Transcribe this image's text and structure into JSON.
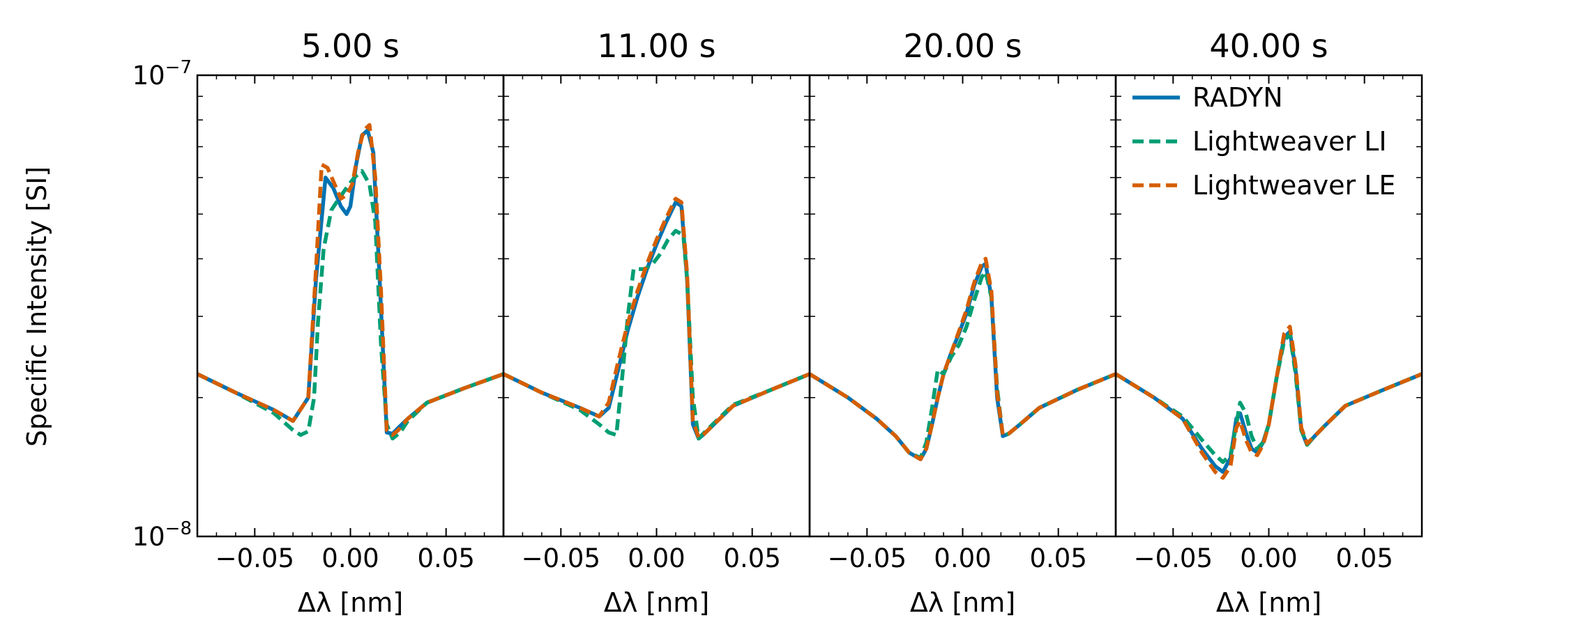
{
  "chart_data": {
    "type": "line",
    "ylabel": "Specific Intensity [SI]",
    "yscale": "log",
    "ylim": [
      1e-08,
      1e-07
    ],
    "ytick_labels": [
      {
        "value": 1e-07,
        "base": "10",
        "exp": "−7"
      },
      {
        "value": 1e-08,
        "base": "10",
        "exp": "−8"
      }
    ],
    "xlabel": "Δλ [nm]",
    "xlim": [
      -0.08,
      0.08
    ],
    "xticks": [
      -0.05,
      0.0,
      0.05
    ],
    "xtick_labels": [
      "−0.05",
      "0.00",
      "0.05"
    ],
    "legend": {
      "placement": "top-right of last panel",
      "entries": [
        {
          "label": "RADYN",
          "color": "#0072b2",
          "dash": "solid"
        },
        {
          "label": "Lightweaver LI",
          "color": "#009e73",
          "dash": "dashed"
        },
        {
          "label": "Lightweaver LE",
          "color": "#d55e00",
          "dash": "dashed"
        }
      ]
    },
    "panels": [
      {
        "title": "5.00 s",
        "series": [
          {
            "name": "RADYN",
            "x": [
              -0.08,
              -0.06,
              -0.04,
              -0.03,
              -0.022,
              -0.018,
              -0.013,
              -0.009,
              -0.005,
              -0.002,
              0.0,
              0.003,
              0.006,
              0.009,
              0.012,
              0.015,
              0.019,
              0.022,
              0.025,
              0.03,
              0.04,
              0.06,
              0.08
            ],
            "y": [
              2.25e-08,
              2.05e-08,
              1.88e-08,
              1.78e-08,
              2e-08,
              3.6e-08,
              6e-08,
              5.7e-08,
              5.2e-08,
              5e-08,
              5.2e-08,
              6.4e-08,
              7.4e-08,
              7.6e-08,
              6.8e-08,
              3.8e-08,
              1.68e-08,
              1.67e-08,
              1.72e-08,
              1.8e-08,
              1.95e-08,
              2.1e-08,
              2.25e-08
            ]
          },
          {
            "name": "Lightweaver LI",
            "x": [
              -0.08,
              -0.06,
              -0.04,
              -0.03,
              -0.026,
              -0.022,
              -0.019,
              -0.017,
              -0.014,
              -0.01,
              -0.006,
              -0.002,
              0.002,
              0.006,
              0.01,
              0.013,
              0.016,
              0.019,
              0.022,
              0.026,
              0.03,
              0.04,
              0.06,
              0.08
            ],
            "y": [
              2.25e-08,
              2.05e-08,
              1.85e-08,
              1.7e-08,
              1.66e-08,
              1.69e-08,
              2e-08,
              2.9e-08,
              4.2e-08,
              5.1e-08,
              5.4e-08,
              5.7e-08,
              6e-08,
              6.2e-08,
              5.8e-08,
              4.8e-08,
              2.6e-08,
              1.75e-08,
              1.63e-08,
              1.68e-08,
              1.78e-08,
              1.95e-08,
              2.1e-08,
              2.25e-08
            ]
          },
          {
            "name": "Lightweaver LE",
            "x": [
              -0.08,
              -0.06,
              -0.04,
              -0.03,
              -0.022,
              -0.018,
              -0.015,
              -0.012,
              -0.009,
              -0.005,
              -0.002,
              0.001,
              0.004,
              0.007,
              0.01,
              0.013,
              0.016,
              0.019,
              0.022,
              0.025,
              0.03,
              0.04,
              0.06,
              0.08
            ],
            "y": [
              2.25e-08,
              2.05e-08,
              1.88e-08,
              1.78e-08,
              2e-08,
              3.8e-08,
              6.4e-08,
              6.3e-08,
              5.9e-08,
              5.4e-08,
              5.5e-08,
              5.8e-08,
              6.8e-08,
              7.6e-08,
              7.8e-08,
              6e-08,
              3.4e-08,
              1.7e-08,
              1.66e-08,
              1.7e-08,
              1.8e-08,
              1.95e-08,
              2.1e-08,
              2.25e-08
            ]
          }
        ]
      },
      {
        "title": "11.00 s",
        "series": [
          {
            "name": "RADYN",
            "x": [
              -0.08,
              -0.06,
              -0.04,
              -0.03,
              -0.025,
              -0.02,
              -0.015,
              -0.01,
              -0.005,
              0.0,
              0.005,
              0.01,
              0.013,
              0.016,
              0.019,
              0.022,
              0.025,
              0.03,
              0.04,
              0.06,
              0.08
            ],
            "y": [
              2.25e-08,
              2.05e-08,
              1.9e-08,
              1.82e-08,
              1.9e-08,
              2.3e-08,
              2.8e-08,
              3.3e-08,
              3.8e-08,
              4.3e-08,
              4.8e-08,
              5.3e-08,
              5.2e-08,
              3.6e-08,
              1.75e-08,
              1.63e-08,
              1.67e-08,
              1.75e-08,
              1.92e-08,
              2.08e-08,
              2.25e-08
            ]
          },
          {
            "name": "Lightweaver LI",
            "x": [
              -0.08,
              -0.06,
              -0.04,
              -0.03,
              -0.025,
              -0.021,
              -0.018,
              -0.015,
              -0.012,
              -0.01,
              -0.006,
              -0.002,
              0.002,
              0.006,
              0.01,
              0.014,
              0.016,
              0.019,
              0.022,
              0.025,
              0.03,
              0.04,
              0.06,
              0.08
            ],
            "y": [
              2.25e-08,
              2.05e-08,
              1.88e-08,
              1.75e-08,
              1.68e-08,
              1.66e-08,
              2.2e-08,
              3e-08,
              3.8e-08,
              3.8e-08,
              3.8e-08,
              3.9e-08,
              4.1e-08,
              4.4e-08,
              4.6e-08,
              4.5e-08,
              3.6e-08,
              2e-08,
              1.63e-08,
              1.68e-08,
              1.76e-08,
              1.93e-08,
              2.08e-08,
              2.25e-08
            ]
          },
          {
            "name": "Lightweaver LE",
            "x": [
              -0.08,
              -0.06,
              -0.04,
              -0.03,
              -0.025,
              -0.02,
              -0.015,
              -0.01,
              -0.005,
              0.0,
              0.005,
              0.01,
              0.013,
              0.016,
              0.019,
              0.022,
              0.025,
              0.03,
              0.04,
              0.06,
              0.08
            ],
            "y": [
              2.25e-08,
              2.05e-08,
              1.9e-08,
              1.82e-08,
              1.95e-08,
              2.4e-08,
              2.9e-08,
              3.4e-08,
              3.9e-08,
              4.4e-08,
              4.9e-08,
              5.4e-08,
              5.3e-08,
              3.7e-08,
              1.78e-08,
              1.64e-08,
              1.67e-08,
              1.75e-08,
              1.92e-08,
              2.08e-08,
              2.25e-08
            ]
          }
        ]
      },
      {
        "title": "20.00 s",
        "series": [
          {
            "name": "RADYN",
            "x": [
              -0.08,
              -0.06,
              -0.045,
              -0.035,
              -0.028,
              -0.022,
              -0.019,
              -0.016,
              -0.013,
              -0.01,
              -0.006,
              -0.002,
              0.002,
              0.006,
              0.01,
              0.012,
              0.015,
              0.018,
              0.021,
              0.024,
              0.03,
              0.04,
              0.06,
              0.08
            ],
            "y": [
              2.25e-08,
              2e-08,
              1.8e-08,
              1.65e-08,
              1.52e-08,
              1.47e-08,
              1.55e-08,
              1.75e-08,
              2e-08,
              2.25e-08,
              2.5e-08,
              2.75e-08,
              3.05e-08,
              3.5e-08,
              3.85e-08,
              3.9e-08,
              3.3e-08,
              2e-08,
              1.65e-08,
              1.67e-08,
              1.75e-08,
              1.9e-08,
              2.08e-08,
              2.25e-08
            ]
          },
          {
            "name": "Lightweaver LI",
            "x": [
              -0.08,
              -0.06,
              -0.045,
              -0.035,
              -0.028,
              -0.022,
              -0.019,
              -0.016,
              -0.013,
              -0.01,
              -0.006,
              -0.002,
              0.002,
              0.006,
              0.01,
              0.012,
              0.015,
              0.018,
              0.021,
              0.024,
              0.03,
              0.04,
              0.06,
              0.08
            ],
            "y": [
              2.25e-08,
              2e-08,
              1.8e-08,
              1.65e-08,
              1.52e-08,
              1.48e-08,
              1.6e-08,
              1.9e-08,
              2.3e-08,
              2.25e-08,
              2.45e-08,
              2.6e-08,
              2.85e-08,
              3.25e-08,
              3.65e-08,
              3.75e-08,
              3.3e-08,
              2.1e-08,
              1.65e-08,
              1.67e-08,
              1.75e-08,
              1.9e-08,
              2.08e-08,
              2.25e-08
            ]
          },
          {
            "name": "Lightweaver LE",
            "x": [
              -0.08,
              -0.06,
              -0.045,
              -0.035,
              -0.028,
              -0.022,
              -0.019,
              -0.016,
              -0.013,
              -0.01,
              -0.006,
              -0.002,
              0.002,
              0.006,
              0.01,
              0.012,
              0.015,
              0.018,
              0.021,
              0.024,
              0.03,
              0.04,
              0.06,
              0.08
            ],
            "y": [
              2.25e-08,
              2e-08,
              1.8e-08,
              1.65e-08,
              1.52e-08,
              1.47e-08,
              1.55e-08,
              1.75e-08,
              2e-08,
              2.25e-08,
              2.5e-08,
              2.78e-08,
              3.1e-08,
              3.55e-08,
              3.92e-08,
              4e-08,
              3.4e-08,
              2.05e-08,
              1.66e-08,
              1.67e-08,
              1.75e-08,
              1.9e-08,
              2.08e-08,
              2.25e-08
            ]
          }
        ]
      },
      {
        "title": "40.00 s",
        "series": [
          {
            "name": "RADYN",
            "x": [
              -0.08,
              -0.06,
              -0.045,
              -0.035,
              -0.028,
              -0.024,
              -0.02,
              -0.017,
              -0.015,
              -0.012,
              -0.009,
              -0.006,
              -0.003,
              0.0,
              0.004,
              0.008,
              0.011,
              0.014,
              0.017,
              0.02,
              0.024,
              0.03,
              0.04,
              0.06,
              0.08
            ],
            "y": [
              2.25e-08,
              2e-08,
              1.8e-08,
              1.55e-08,
              1.42e-08,
              1.38e-08,
              1.48e-08,
              1.8e-08,
              1.85e-08,
              1.68e-08,
              1.55e-08,
              1.52e-08,
              1.6e-08,
              1.75e-08,
              2.2e-08,
              2.7e-08,
              2.78e-08,
              2.3e-08,
              1.7e-08,
              1.58e-08,
              1.65e-08,
              1.75e-08,
              1.92e-08,
              2.08e-08,
              2.25e-08
            ]
          },
          {
            "name": "Lightweaver LI",
            "x": [
              -0.08,
              -0.06,
              -0.045,
              -0.035,
              -0.028,
              -0.024,
              -0.02,
              -0.017,
              -0.015,
              -0.012,
              -0.009,
              -0.006,
              -0.003,
              0.0,
              0.004,
              0.008,
              0.011,
              0.014,
              0.017,
              0.02,
              0.024,
              0.03,
              0.04,
              0.06,
              0.08
            ],
            "y": [
              2.25e-08,
              2e-08,
              1.82e-08,
              1.62e-08,
              1.5e-08,
              1.45e-08,
              1.5e-08,
              1.75e-08,
              1.95e-08,
              1.85e-08,
              1.65e-08,
              1.55e-08,
              1.6e-08,
              1.75e-08,
              2.2e-08,
              2.65e-08,
              2.75e-08,
              2.25e-08,
              1.7e-08,
              1.58e-08,
              1.65e-08,
              1.75e-08,
              1.92e-08,
              2.08e-08,
              2.25e-08
            ]
          },
          {
            "name": "Lightweaver LE",
            "x": [
              -0.08,
              -0.06,
              -0.045,
              -0.035,
              -0.028,
              -0.024,
              -0.02,
              -0.017,
              -0.015,
              -0.012,
              -0.009,
              -0.006,
              -0.003,
              0.0,
              0.004,
              0.008,
              0.011,
              0.014,
              0.017,
              0.02,
              0.024,
              0.03,
              0.04,
              0.06,
              0.08
            ],
            "y": [
              2.25e-08,
              2e-08,
              1.8e-08,
              1.52e-08,
              1.38e-08,
              1.34e-08,
              1.42e-08,
              1.72e-08,
              1.78e-08,
              1.62e-08,
              1.52e-08,
              1.5e-08,
              1.58e-08,
              1.75e-08,
              2.2e-08,
              2.75e-08,
              2.85e-08,
              2.35e-08,
              1.72e-08,
              1.59e-08,
              1.65e-08,
              1.75e-08,
              1.92e-08,
              2.08e-08,
              2.25e-08
            ]
          }
        ]
      }
    ]
  }
}
